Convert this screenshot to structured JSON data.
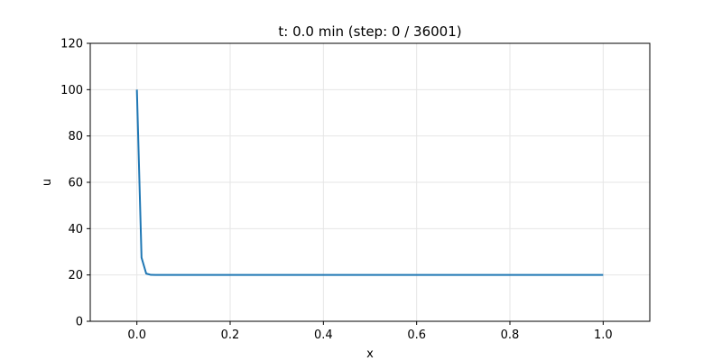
{
  "chart_data": {
    "type": "line",
    "title": "t: 0.0 min (step: 0 / 36001)",
    "xlabel": "x",
    "ylabel": "u",
    "xlim": [
      -0.1,
      1.1
    ],
    "ylim": [
      0,
      120
    ],
    "xticks": [
      0.0,
      0.2,
      0.4,
      0.6,
      0.8,
      1.0
    ],
    "xtick_labels": [
      "0.0",
      "0.2",
      "0.4",
      "0.6",
      "0.8",
      "1.0"
    ],
    "yticks": [
      0,
      20,
      40,
      60,
      80,
      100,
      120
    ],
    "ytick_labels": [
      "0",
      "20",
      "40",
      "60",
      "80",
      "100",
      "120"
    ],
    "grid": true,
    "legend": "none",
    "series": [
      {
        "color": "#1f77b4",
        "x": [
          0.0,
          0.01,
          0.02,
          0.03,
          0.04,
          0.05,
          0.1,
          0.2,
          0.3,
          0.4,
          0.5,
          0.6,
          0.7,
          0.8,
          0.9,
          1.0
        ],
        "y": [
          100,
          27.5,
          20.6,
          20.05,
          20,
          20,
          20,
          20,
          20,
          20,
          20,
          20,
          20,
          20,
          20,
          20
        ]
      }
    ]
  }
}
